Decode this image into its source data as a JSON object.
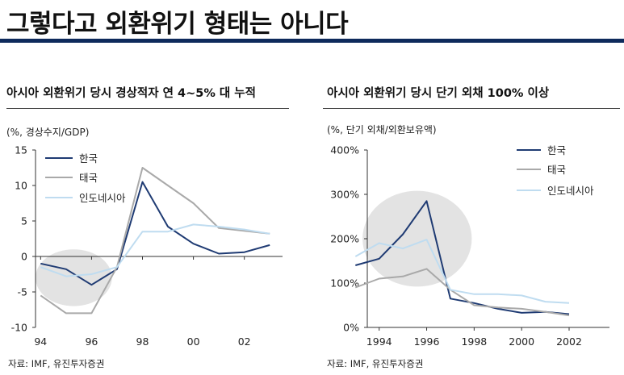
{
  "page": {
    "title": "그렇다고 외환위기 형태는 아니다"
  },
  "colors": {
    "korea": "#1f3b73",
    "thailand": "#a9a9a9",
    "indonesia": "#bfdcf0",
    "highlight": "#e3e3e3",
    "axis": "#333333",
    "title_rule": "#0e2a5c"
  },
  "chart_data": [
    {
      "type": "line",
      "title": "아시아 외환위기 당시 경상적자 연 4~5% 대 누적",
      "unit_label": "(%, 경상수지/GDP)",
      "source": "자료: IMF, 유진투자증권",
      "x": [
        1993,
        1994,
        1995,
        1996,
        1997,
        1998,
        1999,
        2000,
        2001,
        2002,
        2003
      ],
      "xlim": [
        1993.8,
        2003.5
      ],
      "ylim": [
        -10,
        15
      ],
      "yticks": [
        15,
        10,
        5,
        0,
        -5,
        -10
      ],
      "yticklabels": [
        "15",
        "10",
        "5",
        "0",
        "-5",
        "-10"
      ],
      "xticks": [
        1994,
        1996,
        1998,
        2000,
        2002
      ],
      "xticklabels": [
        "94",
        "96",
        "98",
        "00",
        "02"
      ],
      "highlight": {
        "x_center": 1995.3,
        "y_center": -3.0,
        "x_radius": 1.5,
        "y_radius": 4.0
      },
      "legend_position": "top-left",
      "series": [
        {
          "name": "한국",
          "color_key": "korea",
          "values": [
            null,
            -1.0,
            -1.8,
            -4.0,
            -1.8,
            10.5,
            4.2,
            1.8,
            0.4,
            0.6,
            1.6
          ]
        },
        {
          "name": "태국",
          "color_key": "thailand",
          "values": [
            null,
            -5.5,
            -8.0,
            -8.0,
            -1.5,
            12.5,
            10.0,
            7.5,
            4.0,
            3.6,
            3.2
          ]
        },
        {
          "name": "인도네시아",
          "color_key": "indonesia",
          "values": [
            null,
            -1.5,
            -2.8,
            -2.5,
            -1.5,
            3.5,
            3.5,
            4.5,
            4.2,
            3.8,
            3.2
          ]
        }
      ]
    },
    {
      "type": "line",
      "title": "아시아 외환위기 당시 단기 외채 100% 이상",
      "unit_label": "(%, 단기 외채/외환보유액)",
      "source": "자료: IMF, 유진투자증권",
      "x": [
        1993,
        1994,
        1995,
        1996,
        1997,
        1998,
        1999,
        2000,
        2001,
        2002,
        2003
      ],
      "xlim": [
        1993.5,
        2003.7
      ],
      "ylim": [
        0,
        400
      ],
      "yticks": [
        400,
        300,
        200,
        100,
        0
      ],
      "yticklabels": [
        "400%",
        "300%",
        "200%",
        "100%",
        "0%"
      ],
      "xticks": [
        1994,
        1996,
        1998,
        2000,
        2002
      ],
      "xticklabels": [
        "1994",
        "1996",
        "1998",
        "2000",
        "2002"
      ],
      "highlight": {
        "x_center": 1995.6,
        "y_center": 200,
        "x_radius": 2.3,
        "y_radius": 108
      },
      "legend_position": "top-right",
      "series": [
        {
          "name": "한국",
          "color_key": "korea",
          "values": [
            140,
            155,
            210,
            285,
            65,
            55,
            42,
            33,
            35,
            30,
            null
          ]
        },
        {
          "name": "태국",
          "color_key": "thailand",
          "values": [
            90,
            110,
            115,
            132,
            85,
            50,
            45,
            42,
            35,
            27,
            null
          ]
        },
        {
          "name": "인도네시아",
          "color_key": "indonesia",
          "values": [
            160,
            190,
            178,
            198,
            85,
            75,
            75,
            72,
            58,
            55,
            null
          ]
        }
      ]
    }
  ]
}
